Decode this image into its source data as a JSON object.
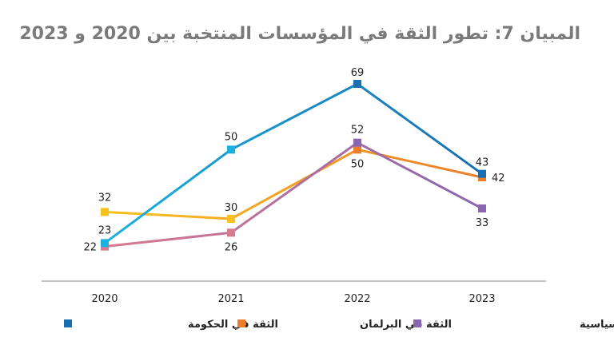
{
  "chart_data": {
    "type": "line",
    "title": "المبيان 7: تطور الثقة في المؤسسات المنتخبة بين 2020 و 2023",
    "xlabel": "",
    "ylabel": "",
    "categories": [
      "2020",
      "2021",
      "2022",
      "2023"
    ],
    "ylim": [
      12,
      84
    ],
    "grid": false,
    "legend_position": "bottom",
    "series": [
      {
        "name": "الثقة في الحكومة",
        "values": [
          23,
          50,
          69,
          43
        ],
        "colors": [
          "#1ab0e0",
          "#1a6fb0"
        ]
      },
      {
        "name": "الثقة في البرلمان",
        "values": [
          32,
          30,
          50,
          42
        ],
        "colors": [
          "#f7c21d",
          "#ee7d2b"
        ]
      },
      {
        "name": "الثقة في الأحزاب السياسية",
        "values": [
          22,
          26,
          52,
          33
        ],
        "colors": [
          "#d97a8e",
          "#8a66b0"
        ]
      }
    ]
  }
}
